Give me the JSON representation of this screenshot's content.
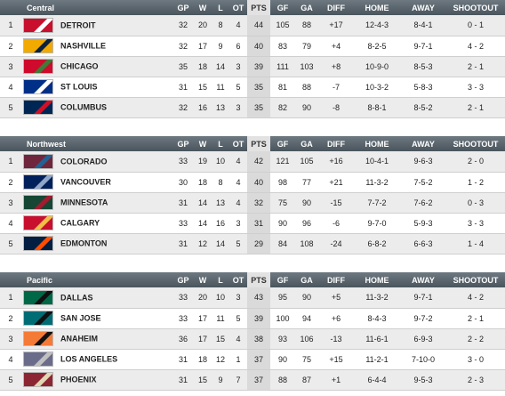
{
  "columns": {
    "gp": "GP",
    "w": "W",
    "l": "L",
    "ot": "OT",
    "pts": "PTS",
    "gf": "GF",
    "ga": "GA",
    "diff": "DIFF",
    "home": "HOME",
    "away": "AWAY",
    "shootout": "SHOOTOUT"
  },
  "divisions": [
    {
      "name": "Central",
      "teams": [
        {
          "rank": "1",
          "name": "DETROIT",
          "gp": "32",
          "w": "20",
          "l": "8",
          "ot": "4",
          "pts": "44",
          "gf": "105",
          "ga": "88",
          "diff": "+17",
          "home": "12-4-3",
          "away": "8-4-1",
          "shootout": "0 - 1",
          "logo_colors": [
            "#c8102e",
            "#ffffff"
          ]
        },
        {
          "rank": "2",
          "name": "NASHVILLE",
          "gp": "32",
          "w": "17",
          "l": "9",
          "ot": "6",
          "pts": "40",
          "gf": "83",
          "ga": "79",
          "diff": "+4",
          "home": "8-2-5",
          "away": "9-7-1",
          "shootout": "4 - 2",
          "logo_colors": [
            "#f2a900",
            "#0c2340"
          ]
        },
        {
          "rank": "3",
          "name": "CHICAGO",
          "gp": "35",
          "w": "18",
          "l": "14",
          "ot": "3",
          "pts": "39",
          "gf": "111",
          "ga": "103",
          "diff": "+8",
          "home": "10-9-0",
          "away": "8-5-3",
          "shootout": "2 - 1",
          "logo_colors": [
            "#cf0a2c",
            "#3c7d3a"
          ]
        },
        {
          "rank": "4",
          "name": "ST LOUIS",
          "gp": "31",
          "w": "15",
          "l": "11",
          "ot": "5",
          "pts": "35",
          "gf": "81",
          "ga": "88",
          "diff": "-7",
          "home": "10-3-2",
          "away": "5-8-3",
          "shootout": "3 - 3",
          "logo_colors": [
            "#002f87",
            "#ffffff"
          ]
        },
        {
          "rank": "5",
          "name": "COLUMBUS",
          "gp": "32",
          "w": "16",
          "l": "13",
          "ot": "3",
          "pts": "35",
          "gf": "82",
          "ga": "90",
          "diff": "-8",
          "home": "8-8-1",
          "away": "8-5-2",
          "shootout": "2 - 1",
          "logo_colors": [
            "#002654",
            "#ce1126"
          ]
        }
      ]
    },
    {
      "name": "Northwest",
      "teams": [
        {
          "rank": "1",
          "name": "COLORADO",
          "gp": "33",
          "w": "19",
          "l": "10",
          "ot": "4",
          "pts": "42",
          "gf": "121",
          "ga": "105",
          "diff": "+16",
          "home": "10-4-1",
          "away": "9-6-3",
          "shootout": "2 - 0",
          "logo_colors": [
            "#6f263d",
            "#236192"
          ]
        },
        {
          "rank": "2",
          "name": "VANCOUVER",
          "gp": "30",
          "w": "18",
          "l": "8",
          "ot": "4",
          "pts": "40",
          "gf": "98",
          "ga": "77",
          "diff": "+21",
          "home": "11-3-2",
          "away": "7-5-2",
          "shootout": "1 - 2",
          "logo_colors": [
            "#00205b",
            "#8fa6c8"
          ]
        },
        {
          "rank": "3",
          "name": "MINNESOTA",
          "gp": "31",
          "w": "14",
          "l": "13",
          "ot": "4",
          "pts": "32",
          "gf": "75",
          "ga": "90",
          "diff": "-15",
          "home": "7-7-2",
          "away": "7-6-2",
          "shootout": "0 - 3",
          "logo_colors": [
            "#154734",
            "#a6192e"
          ]
        },
        {
          "rank": "4",
          "name": "CALGARY",
          "gp": "33",
          "w": "14",
          "l": "16",
          "ot": "3",
          "pts": "31",
          "gf": "90",
          "ga": "96",
          "diff": "-6",
          "home": "9-7-0",
          "away": "5-9-3",
          "shootout": "3 - 3",
          "logo_colors": [
            "#c8102e",
            "#f1be48"
          ]
        },
        {
          "rank": "5",
          "name": "EDMONTON",
          "gp": "31",
          "w": "12",
          "l": "14",
          "ot": "5",
          "pts": "29",
          "gf": "84",
          "ga": "108",
          "diff": "-24",
          "home": "6-8-2",
          "away": "6-6-3",
          "shootout": "1 - 4",
          "logo_colors": [
            "#041e42",
            "#ff4c00"
          ]
        }
      ]
    },
    {
      "name": "Pacific",
      "teams": [
        {
          "rank": "1",
          "name": "DALLAS",
          "gp": "33",
          "w": "20",
          "l": "10",
          "ot": "3",
          "pts": "43",
          "gf": "95",
          "ga": "90",
          "diff": "+5",
          "home": "11-3-2",
          "away": "9-7-1",
          "shootout": "4 - 2",
          "logo_colors": [
            "#006847",
            "#111111"
          ]
        },
        {
          "rank": "2",
          "name": "SAN JOSE",
          "gp": "33",
          "w": "17",
          "l": "11",
          "ot": "5",
          "pts": "39",
          "gf": "100",
          "ga": "94",
          "diff": "+6",
          "home": "8-4-3",
          "away": "9-7-2",
          "shootout": "2 - 1",
          "logo_colors": [
            "#006d75",
            "#111111"
          ]
        },
        {
          "rank": "3",
          "name": "ANAHEIM",
          "gp": "36",
          "w": "17",
          "l": "15",
          "ot": "4",
          "pts": "38",
          "gf": "93",
          "ga": "106",
          "diff": "-13",
          "home": "11-6-1",
          "away": "6-9-3",
          "shootout": "2 - 2",
          "logo_colors": [
            "#f47a38",
            "#111111"
          ]
        },
        {
          "rank": "4",
          "name": "LOS ANGELES",
          "gp": "31",
          "w": "18",
          "l": "12",
          "ot": "1",
          "pts": "37",
          "gf": "90",
          "ga": "75",
          "diff": "+15",
          "home": "11-2-1",
          "away": "7-10-0",
          "shootout": "3 - 0",
          "logo_colors": [
            "#6b6b8a",
            "#c0c0c0"
          ]
        },
        {
          "rank": "5",
          "name": "PHOENIX",
          "gp": "31",
          "w": "15",
          "l": "9",
          "ot": "7",
          "pts": "37",
          "gf": "88",
          "ga": "87",
          "diff": "+1",
          "home": "6-4-4",
          "away": "9-5-3",
          "shootout": "2 - 3",
          "logo_colors": [
            "#8c2633",
            "#e2d6b5"
          ]
        }
      ]
    }
  ]
}
